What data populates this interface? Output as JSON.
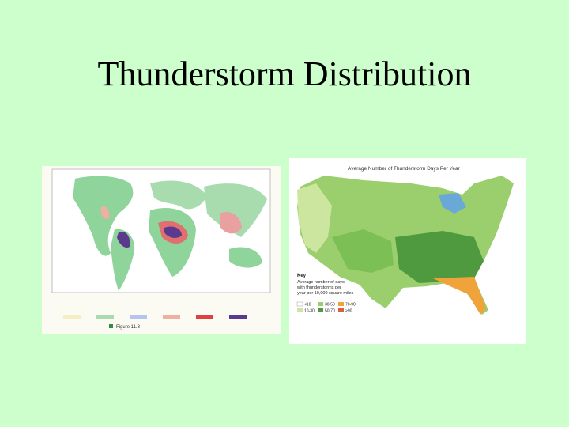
{
  "title": "Thunderstorm Distribution",
  "left_map": {
    "caption": "Figure 11.3"
  },
  "right_map": {
    "title": "Average Number of Thunderstorm Days Per Year",
    "key": {
      "heading": "Key",
      "description": [
        "Average number of days",
        "with thunderstorms per",
        "year per 10,000 square miles"
      ],
      "classes": [
        "<10",
        "10-30",
        "30-50",
        "50-70",
        "70-90",
        ">90"
      ]
    }
  }
}
